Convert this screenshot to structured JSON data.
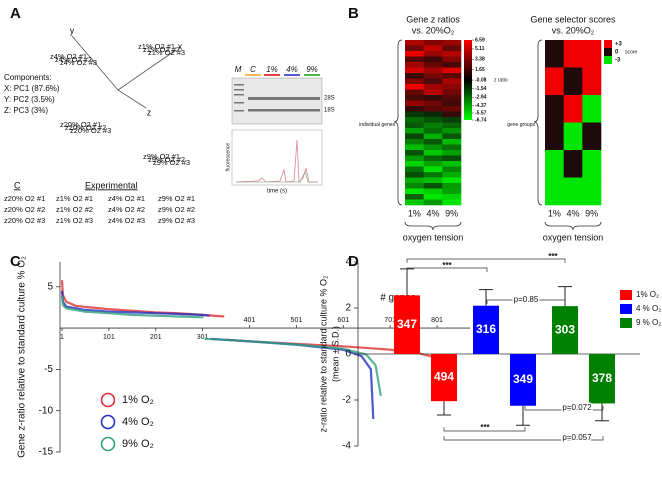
{
  "chart_data": [
    {
      "panel": "A",
      "type": "pca",
      "axis_labels": [
        "x",
        "y",
        "z"
      ],
      "components_title": "Components:",
      "components": [
        "X: PC1 (87.6%)",
        "Y: PC2 (3.5%)",
        "Z: PC3 (3%)"
      ],
      "legend_headers": [
        "C",
        "Experimental"
      ],
      "groups": [
        {
          "color": "#e8a317",
          "labels": [
            "z20% O2 #1",
            "z20% O2 #2",
            "z20% O2 #3"
          ]
        },
        {
          "color": "#e00000",
          "labels": [
            "z1% O2 #1",
            "z1% O2 #2",
            "z1% O2 #3"
          ]
        },
        {
          "color": "#2020c0",
          "labels": [
            "z4% O2 #1",
            "z4% O2 #2",
            "z4% O2 #3"
          ]
        },
        {
          "color": "#119911",
          "labels": [
            "z9% O2 #1",
            "z9% O2 #2",
            "z9% O2 #3"
          ]
        }
      ],
      "inset": {
        "lanes": [
          "M",
          "C",
          "1%",
          "4%",
          "9%"
        ],
        "bands": [
          "28S",
          "18S"
        ],
        "xlabel": "time (s)",
        "ylabel": "fluorescence"
      }
    },
    {
      "panel": "B",
      "type": "heatmap",
      "title": "Gene z ratios",
      "subtitle": "vs. 20%O₂",
      "colorbar_label": "z ratio",
      "row_label": "individual genes",
      "categories": [
        "1%",
        "4%",
        "9%"
      ],
      "xlabel": "oxygen tension",
      "zlim": [
        -6.74,
        6.59
      ],
      "colorbar_ticks": [
        6.59,
        5.11,
        3.38,
        1.65,
        -0.08,
        -1.54,
        -2.94,
        -4.37,
        -5.57,
        -6.74
      ],
      "values": [
        [
          2.1,
          1.5,
          1.8
        ],
        [
          1.2,
          2.4,
          1.0
        ],
        [
          3.0,
          1.8,
          2.2
        ],
        [
          0.8,
          0.5,
          1.5
        ],
        [
          1.9,
          1.1,
          0.6
        ],
        [
          2.6,
          2.0,
          2.8
        ],
        [
          0.4,
          1.3,
          0.9
        ],
        [
          1.5,
          0.7,
          2.0
        ],
        [
          4.2,
          1.9,
          1.6
        ],
        [
          1.0,
          2.2,
          1.2
        ],
        [
          0.6,
          0.3,
          0.8
        ],
        [
          1.7,
          1.2,
          0.5
        ],
        [
          0.3,
          0.9,
          1.1
        ],
        [
          -0.4,
          -0.2,
          0.3
        ],
        [
          -1.2,
          -0.8,
          -0.5
        ],
        [
          -0.9,
          -1.5,
          -1.1
        ],
        [
          -2.0,
          -1.2,
          -1.8
        ],
        [
          -0.6,
          -2.2,
          -0.9
        ],
        [
          -1.5,
          -0.9,
          -2.4
        ],
        [
          -2.4,
          -1.8,
          -1.3
        ],
        [
          -0.8,
          -2.6,
          -2.0
        ],
        [
          -1.9,
          -1.1,
          -0.7
        ],
        [
          -2.8,
          -2.0,
          -2.5
        ],
        [
          -1.3,
          -3.0,
          -1.6
        ],
        [
          -0.7,
          -1.4,
          -2.2
        ],
        [
          -2.2,
          -2.5,
          -3.1
        ],
        [
          -1.6,
          -0.8,
          -1.9
        ],
        [
          -3.2,
          -2.7,
          -2.0
        ],
        [
          -1.0,
          -3.4,
          -2.8
        ],
        [
          -2.6,
          -1.9,
          -3.6
        ]
      ]
    },
    {
      "type": "heatmap",
      "title": "Gene selector scores",
      "subtitle": "vs. 20%O₂",
      "colorbar_label": "score",
      "row_label": "gene groups",
      "categories": [
        "1%",
        "4%",
        "9%"
      ],
      "xlabel": "oxygen tension",
      "zlim": [
        -3,
        3
      ],
      "colorbar_ticks": [
        {
          "value": 3,
          "label": "+3"
        },
        0,
        -3
      ],
      "values": [
        [
          0,
          3,
          3
        ],
        [
          3,
          0,
          3
        ],
        [
          0,
          3,
          -3
        ],
        [
          0,
          -3,
          0
        ],
        [
          -3,
          0,
          -3
        ],
        [
          -3,
          -3,
          -3
        ]
      ]
    },
    {
      "panel": "C",
      "type": "line",
      "ylabel": "Gene z-ratio relative to standard culture % O₂",
      "xlabel": "# genes",
      "xlim": [
        1,
        850
      ],
      "ylim": [
        -15,
        8
      ],
      "xticks": [
        1,
        101,
        201,
        301,
        401,
        501,
        601,
        701,
        801
      ],
      "yticks": [
        5,
        -5,
        -10,
        -15
      ],
      "series": [
        {
          "name": "1% O₂",
          "color": "#e03030",
          "x": [
            1,
            3,
            10,
            30,
            60,
            100,
            150,
            200,
            250,
            300,
            347,
            348,
            350,
            400,
            500,
            600,
            700,
            760,
            800,
            820,
            835,
            841
          ],
          "values": [
            5.8,
            4.0,
            3.2,
            2.7,
            2.5,
            2.3,
            2.1,
            1.9,
            1.8,
            1.6,
            1.4,
            null,
            -1.4,
            -1.6,
            -1.9,
            -2.2,
            -2.6,
            -3.0,
            -3.6,
            -4.2,
            -5.0,
            -6.2
          ]
        },
        {
          "name": "4% O₂",
          "color": "#2030c0",
          "x": [
            1,
            3,
            10,
            50,
            100,
            150,
            200,
            250,
            300,
            316,
            317,
            318,
            400,
            500,
            600,
            640,
            660,
            665
          ],
          "values": [
            4.5,
            3.2,
            2.6,
            2.2,
            2.0,
            1.9,
            1.8,
            1.7,
            1.6,
            1.5,
            null,
            -1.3,
            -1.6,
            -2.0,
            -2.6,
            -3.4,
            -5.0,
            -11.0
          ]
        },
        {
          "name": "9% O₂",
          "color": "#30a080",
          "x": [
            1,
            3,
            10,
            50,
            100,
            150,
            200,
            250,
            303,
            304,
            305,
            400,
            500,
            600,
            650,
            670,
            681
          ],
          "values": [
            3.9,
            2.8,
            2.4,
            2.0,
            1.8,
            1.6,
            1.5,
            1.4,
            1.3,
            null,
            -1.3,
            -1.6,
            -2.0,
            -2.5,
            -3.2,
            -4.5,
            -8.2
          ]
        }
      ]
    },
    {
      "panel": "D",
      "type": "bar",
      "ylabel": [
        "z-ratio relative to standard culture % O₂",
        "(mean ± S.D.)"
      ],
      "ylim": [
        -4,
        4
      ],
      "yticks": [
        -4,
        -2,
        0,
        2,
        4
      ],
      "series": [
        {
          "name": "1% O₂",
          "color": "#ff0000",
          "values": [
            2.55,
            -2.05
          ],
          "errors": [
            1.15,
            0.6
          ],
          "bar_labels": [
            347,
            494
          ]
        },
        {
          "name": "4 % O₂",
          "color": "#0000ff",
          "values": [
            2.1,
            -2.25
          ],
          "errors": [
            0.7,
            0.85
          ],
          "bar_labels": [
            316,
            349
          ]
        },
        {
          "name": "9 % O₂",
          "color": "#008000",
          "values": [
            2.08,
            -2.15
          ],
          "errors": [
            0.85,
            0.75
          ],
          "bar_labels": [
            303,
            378
          ]
        }
      ],
      "annotations": [
        "***",
        "***",
        "p=0.85",
        "p=0.072",
        "***",
        "p=0.057"
      ]
    }
  ]
}
